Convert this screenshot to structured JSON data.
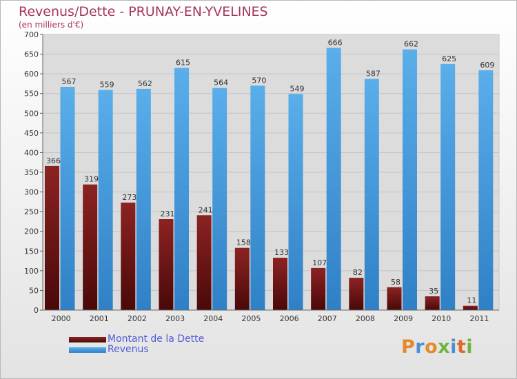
{
  "title": "Revenus/Dette - PRUNAY-EN-YVELINES",
  "subtitle": "(en milliers d'€)",
  "logo": {
    "text": "Proxiti",
    "colors": [
      "#e48a2a",
      "#4a8fd6",
      "#e48a2a",
      "#6fb43f",
      "#4a8fd6",
      "#e06a2a",
      "#6fb43f"
    ]
  },
  "chart_data": {
    "type": "bar",
    "title": "Revenus/Dette - PRUNAY-EN-YVELINES",
    "subtitle": "(en milliers d'€)",
    "xlabel": "",
    "ylabel": "",
    "categories": [
      "2000",
      "2001",
      "2002",
      "2003",
      "2004",
      "2005",
      "2006",
      "2007",
      "2008",
      "2009",
      "2010",
      "2011"
    ],
    "series": [
      {
        "name": "Montant de la Dette",
        "color": "#7a1818",
        "values": [
          366,
          319,
          273,
          231,
          241,
          158,
          133,
          107,
          82,
          58,
          35,
          11
        ],
        "labels": [
          "366",
          "319",
          "273",
          "231",
          "241",
          "158",
          "133",
          "107",
          "82",
          "58",
          "35",
          "11"
        ]
      },
      {
        "name": "Revenus",
        "color": "#4a9de0",
        "values": [
          567,
          559,
          562,
          615,
          564,
          570,
          549,
          666,
          587,
          662,
          625,
          609
        ],
        "labels": [
          "567",
          "559",
          "562",
          "615",
          "564",
          "570",
          "549",
          "666",
          "587",
          "662",
          "625",
          "609"
        ]
      }
    ],
    "yticks": [
      "0",
      "50",
      "100",
      "150",
      "200",
      "250",
      "300",
      "350",
      "400",
      "450",
      "500",
      "550",
      "600",
      "650",
      "700"
    ],
    "ylim": [
      0,
      700
    ],
    "grid": true,
    "legend": "bottom-left"
  }
}
